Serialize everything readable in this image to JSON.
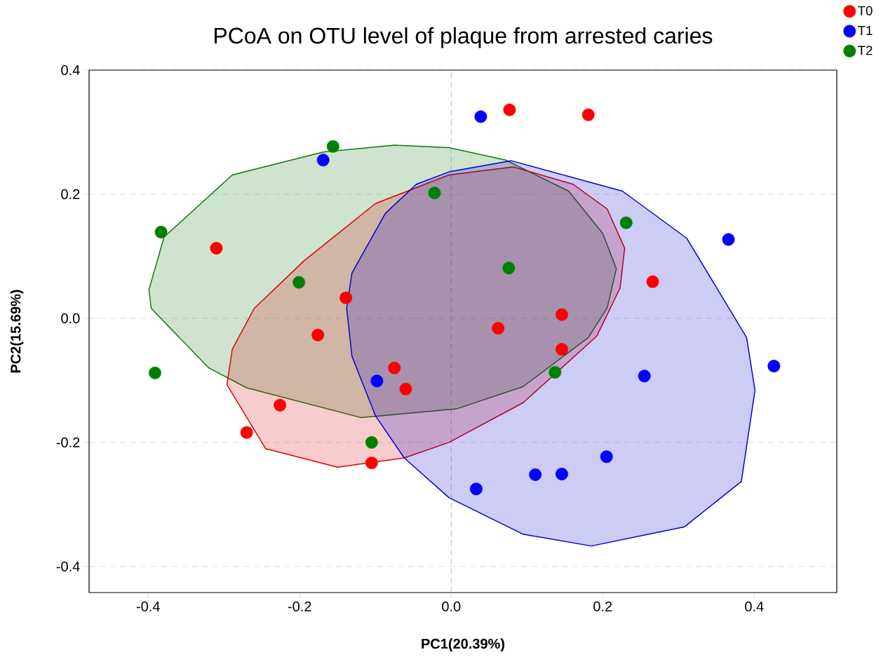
{
  "chart_data": {
    "type": "scatter",
    "title": "PCoA on OTU level of plaque from arrested caries",
    "xlabel": "PC1(20.39%)",
    "ylabel": "PC2(15.69%)",
    "xlim": [
      -0.478,
      0.509
    ],
    "ylim": [
      -0.442,
      0.4
    ],
    "xticks": [
      -0.4,
      -0.2,
      {
        "value": 0,
        "label": "0.0"
      },
      0.2,
      0.4
    ],
    "yticks": [
      -0.4,
      -0.2,
      {
        "value": 0,
        "label": "0.0"
      },
      0.2,
      0.4
    ],
    "grid": "y",
    "legend": "top right",
    "ref_lines": [
      {
        "axis": "x",
        "value": 0,
        "line_style": "dashed",
        "color": "#c0c0c0"
      }
    ],
    "series": [
      {
        "type": "area",
        "marker": "none",
        "color": "#117711",
        "x": [
          -0.399,
          -0.379,
          -0.289,
          -0.169,
          -0.075,
          -0.003,
          0.072,
          0.155,
          0.2,
          0.218,
          0.206,
          0.181,
          0.095,
          0.007,
          -0.119,
          -0.27,
          -0.32,
          -0.396,
          -0.399
        ],
        "values": [
          0.046,
          0.131,
          0.231,
          0.268,
          0.279,
          0.275,
          0.255,
          0.205,
          0.137,
          0.08,
          0.017,
          -0.031,
          -0.11,
          -0.146,
          -0.16,
          -0.112,
          -0.08,
          0.016,
          0.046
        ]
      },
      {
        "type": "area",
        "marker": "none",
        "color": "#dd0000",
        "x": [
          -0.296,
          -0.289,
          -0.26,
          -0.194,
          -0.1,
          -0.003,
          0.082,
          0.161,
          0.206,
          0.229,
          0.223,
          0.192,
          0.095,
          -0.003,
          -0.062,
          -0.15,
          -0.245,
          -0.296
        ],
        "values": [
          -0.107,
          -0.05,
          0.016,
          0.093,
          0.185,
          0.231,
          0.244,
          0.216,
          0.176,
          0.113,
          0.049,
          -0.029,
          -0.136,
          -0.2,
          -0.225,
          -0.24,
          -0.21,
          -0.107
        ]
      },
      {
        "type": "area",
        "marker": "none",
        "color": "#0000cc",
        "x": [
          -0.138,
          -0.131,
          -0.087,
          -0.046,
          -0.003,
          0.079,
          0.226,
          0.311,
          0.39,
          0.401,
          0.383,
          0.308,
          0.185,
          0.095,
          -0.003,
          -0.062,
          -0.1,
          -0.131,
          -0.138
        ],
        "values": [
          0.016,
          0.073,
          0.169,
          0.216,
          0.236,
          0.254,
          0.205,
          0.129,
          -0.031,
          -0.116,
          -0.263,
          -0.336,
          -0.367,
          -0.348,
          -0.289,
          -0.225,
          -0.157,
          -0.061,
          0.016
        ]
      },
      {
        "name": "T0",
        "marker": "circle",
        "color": "#ff0000",
        "x": [
          0.077,
          0.181,
          -0.31,
          -0.139,
          -0.176,
          -0.226,
          -0.27,
          -0.105,
          -0.075,
          -0.06,
          0.062,
          0.146,
          0.146,
          0.266
        ],
        "values": [
          0.336,
          0.328,
          0.113,
          0.033,
          -0.027,
          -0.14,
          -0.184,
          -0.233,
          -0.08,
          -0.114,
          -0.016,
          0.006,
          -0.05,
          0.059
        ]
      },
      {
        "name": "T1",
        "marker": "circle",
        "color": "#0000ff",
        "x": [
          0.039,
          -0.169,
          -0.098,
          0.366,
          0.426,
          0.255,
          0.205,
          0.146,
          0.111,
          0.033
        ],
        "values": [
          0.325,
          0.255,
          -0.101,
          0.127,
          -0.077,
          -0.093,
          -0.223,
          -0.251,
          -0.252,
          -0.275
        ]
      },
      {
        "name": "T2",
        "marker": "circle",
        "color": "#008000",
        "x": [
          -0.156,
          -0.383,
          -0.201,
          -0.022,
          -0.391,
          -0.105,
          0.231,
          0.076,
          0.137
        ],
        "values": [
          0.277,
          0.139,
          0.058,
          0.202,
          -0.088,
          -0.2,
          0.154,
          0.081,
          -0.087
        ]
      }
    ]
  }
}
